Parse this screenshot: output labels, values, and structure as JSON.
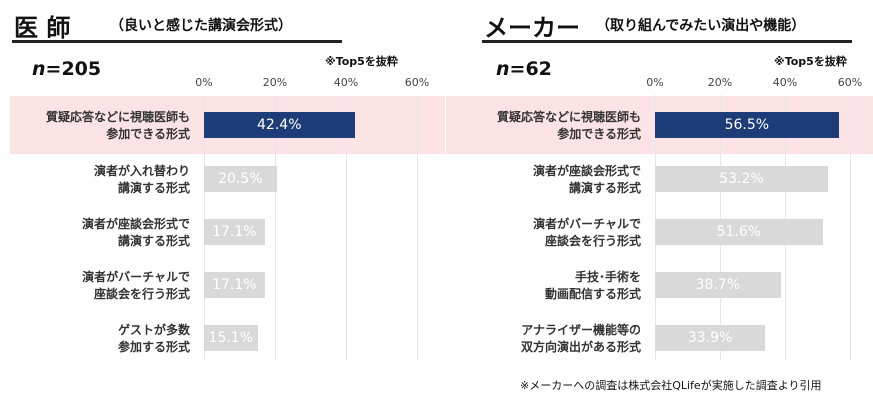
{
  "left": {
    "title_main": "医 師",
    "title_sub": "（良いと感じた講演会形式）",
    "n_label_italic": "n",
    "n_label_value": "=205",
    "note": "※Top5を抜粋"
  },
  "right": {
    "title_main": "メーカー",
    "title_sub": "（取り組んでみたい演出や機能）",
    "n_label_italic": "n",
    "n_label_value": "=62",
    "note": "※Top5を抜粋"
  },
  "footer": "※メーカーへの調査は株式会社QLifeが実施した調査より引用",
  "chart_data": [
    {
      "type": "bar",
      "orientation": "horizontal",
      "categories": [
        "質疑応答などに視聴医師も\n参加できる形式",
        "演者が入れ替わり\n講演する形式",
        "演者が座談会形式で\n講演する形式",
        "演者がバーチャルで\n座談会を行う形式",
        "ゲストが多数\n参加する形式"
      ],
      "values": [
        42.4,
        20.5,
        17.1,
        17.1,
        15.1
      ],
      "data_labels": [
        "42.4%",
        "20.5%",
        "17.1%",
        "17.1%",
        "15.1%"
      ],
      "xlim": [
        0,
        60
      ],
      "ticks": [
        "0%",
        "20%",
        "40%",
        "60%"
      ],
      "highlight_category": 0,
      "colors": {
        "top": "#1e3d78",
        "other": "#d9d9d9",
        "highlight_bg": "#fce3e5"
      }
    },
    {
      "type": "bar",
      "orientation": "horizontal",
      "categories": [
        "質疑応答などに視聴医師も\n参加できる形式",
        "演者が座談会形式で\n講演する形式",
        "演者がバーチャルで\n座談会を行う形式",
        "手技･手術を\n動画配信する形式",
        "アナライザー機能等の\n双方向演出がある形式"
      ],
      "values": [
        56.5,
        53.2,
        51.6,
        38.7,
        33.9
      ],
      "data_labels": [
        "56.5%",
        "53.2%",
        "51.6%",
        "38.7%",
        "33.9%"
      ],
      "xlim": [
        0,
        60
      ],
      "ticks": [
        "0%",
        "20%",
        "40%",
        "60%"
      ],
      "highlight_category": 0,
      "colors": {
        "top": "#1e3d78",
        "other": "#d9d9d9",
        "highlight_bg": "#fce3e5"
      }
    }
  ]
}
